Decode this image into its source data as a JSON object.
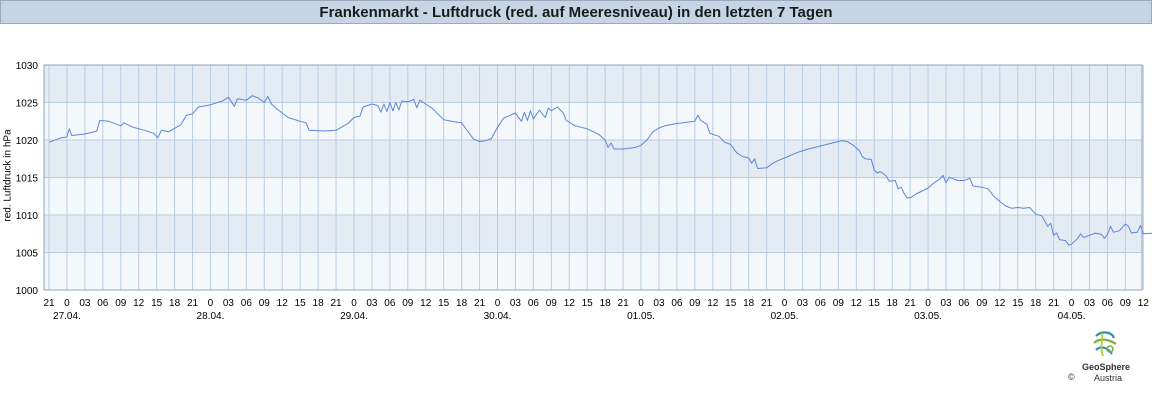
{
  "title": "Frankenmarkt - Luftdruck (red. auf Meeresniveau) in den letzten 7 Tagen",
  "logo": {
    "name": "GeoSphere",
    "sub": "Austria",
    "copyright": "©"
  },
  "colors": {
    "title_bg": "#c5d5e6",
    "band_dark": "#e4ebf3",
    "band_light": "#f5f8fb",
    "grid": "#b9cde3",
    "line": "#5b86d6"
  },
  "chart_data": {
    "type": "line",
    "title": "Frankenmarkt - Luftdruck (red. auf Meeresniveau) in den letzten 7 Tagen",
    "ylabel": "red. Luftdruck in hPa",
    "xlabel": "",
    "ylim": [
      1000,
      1030
    ],
    "yticks": [
      "1030",
      "1025",
      "1020",
      "1015",
      "1010",
      "1005",
      "1000"
    ],
    "grid": true,
    "x_unit": "hours from 26.04. 21:00",
    "xlim": [
      0,
      183
    ],
    "hour_labels": [
      "21",
      "0",
      "03",
      "06",
      "09",
      "12",
      "15",
      "18",
      "21",
      "0",
      "03",
      "06",
      "09",
      "12",
      "15",
      "18",
      "21",
      "0",
      "03",
      "06",
      "09",
      "12",
      "15",
      "18",
      "21",
      "0",
      "03",
      "06",
      "09",
      "12",
      "15",
      "18",
      "21",
      "0",
      "03",
      "06",
      "09",
      "12",
      "15",
      "18",
      "21",
      "0",
      "03",
      "06",
      "09",
      "12",
      "15",
      "18",
      "21",
      "0",
      "03",
      "06",
      "09",
      "12",
      "15",
      "18",
      "21",
      "0",
      "03",
      "06",
      "09",
      "12",
      "15",
      "18",
      "21",
      "0",
      "03",
      "06",
      "09",
      "12"
    ],
    "date_labels": [
      {
        "label": "27.04.",
        "hour": 3
      },
      {
        "label": "28.04.",
        "hour": 27
      },
      {
        "label": "29.04.",
        "hour": 51
      },
      {
        "label": "30.04.",
        "hour": 75
      },
      {
        "label": "01.05.",
        "hour": 99
      },
      {
        "label": "02.05.",
        "hour": 123
      },
      {
        "label": "03.05.",
        "hour": 147
      },
      {
        "label": "04.05.",
        "hour": 171
      }
    ],
    "series": [
      {
        "values": [
          [
            0,
            1019.7
          ],
          [
            2,
            1020.3
          ],
          [
            3,
            1020.4
          ],
          [
            3.4,
            1021.5
          ],
          [
            3.8,
            1020.6
          ],
          [
            6,
            1020.8
          ],
          [
            8,
            1021.2
          ],
          [
            8.5,
            1022.6
          ],
          [
            10,
            1022.5
          ],
          [
            12,
            1021.9
          ],
          [
            12.5,
            1022.3
          ],
          [
            14,
            1021.7
          ],
          [
            16,
            1021.3
          ],
          [
            17.5,
            1020.9
          ],
          [
            18.2,
            1020.3
          ],
          [
            18.8,
            1021.3
          ],
          [
            20,
            1021.1
          ],
          [
            22,
            1022.0
          ],
          [
            23,
            1023.3
          ],
          [
            24,
            1023.5
          ],
          [
            25,
            1024.4
          ],
          [
            27,
            1024.7
          ],
          [
            29,
            1025.2
          ],
          [
            30,
            1025.7
          ],
          [
            31,
            1024.5
          ],
          [
            31.5,
            1025.5
          ],
          [
            33,
            1025.3
          ],
          [
            34,
            1025.9
          ],
          [
            35,
            1025.6
          ],
          [
            36,
            1025.0
          ],
          [
            36.6,
            1025.8
          ],
          [
            37.2,
            1024.8
          ],
          [
            38,
            1024.2
          ],
          [
            40,
            1023.0
          ],
          [
            42,
            1022.5
          ],
          [
            43,
            1022.3
          ],
          [
            43.5,
            1021.3
          ],
          [
            46,
            1021.2
          ],
          [
            48,
            1021.3
          ],
          [
            50,
            1022.2
          ],
          [
            51,
            1023.0
          ],
          [
            52,
            1023.2
          ],
          [
            52.5,
            1024.4
          ],
          [
            54,
            1024.8
          ],
          [
            55,
            1024.6
          ],
          [
            55.5,
            1023.7
          ],
          [
            56,
            1024.8
          ],
          [
            56.5,
            1023.8
          ],
          [
            57,
            1025.0
          ],
          [
            57.5,
            1023.9
          ],
          [
            58,
            1025.0
          ],
          [
            58.5,
            1024.0
          ],
          [
            59,
            1025.2
          ],
          [
            60,
            1025.1
          ],
          [
            61,
            1025.4
          ],
          [
            61.5,
            1024.3
          ],
          [
            62,
            1025.3
          ],
          [
            63,
            1024.8
          ],
          [
            64,
            1024.3
          ],
          [
            65,
            1023.5
          ],
          [
            66,
            1022.7
          ],
          [
            68,
            1022.4
          ],
          [
            69,
            1022.3
          ],
          [
            70,
            1021.2
          ],
          [
            71,
            1020.1
          ],
          [
            72,
            1019.8
          ],
          [
            73,
            1019.9
          ],
          [
            74,
            1020.2
          ],
          [
            75,
            1021.7
          ],
          [
            76,
            1022.9
          ],
          [
            78,
            1023.6
          ],
          [
            79,
            1022.5
          ],
          [
            79.5,
            1023.7
          ],
          [
            80,
            1022.6
          ],
          [
            80.5,
            1023.9
          ],
          [
            81,
            1022.8
          ],
          [
            82,
            1024.0
          ],
          [
            83,
            1023.0
          ],
          [
            83.5,
            1024.3
          ],
          [
            84,
            1023.9
          ],
          [
            85,
            1024.4
          ],
          [
            86,
            1023.6
          ],
          [
            86.5,
            1022.6
          ],
          [
            88,
            1021.9
          ],
          [
            90,
            1021.5
          ],
          [
            91,
            1021.1
          ],
          [
            92,
            1020.7
          ],
          [
            93,
            1020.0
          ],
          [
            93.5,
            1019.0
          ],
          [
            94,
            1019.6
          ],
          [
            94.5,
            1018.8
          ],
          [
            96,
            1018.8
          ],
          [
            98,
            1019.0
          ],
          [
            99,
            1019.3
          ],
          [
            100,
            1020.0
          ],
          [
            101,
            1021.1
          ],
          [
            102,
            1021.6
          ],
          [
            103,
            1021.9
          ],
          [
            105,
            1022.2
          ],
          [
            107,
            1022.4
          ],
          [
            108,
            1022.5
          ],
          [
            108.5,
            1023.3
          ],
          [
            109,
            1022.6
          ],
          [
            110,
            1022.1
          ],
          [
            110.5,
            1020.9
          ],
          [
            112,
            1020.5
          ],
          [
            113,
            1019.7
          ],
          [
            114,
            1019.4
          ],
          [
            115,
            1018.3
          ],
          [
            116,
            1017.8
          ],
          [
            117,
            1017.6
          ],
          [
            117.5,
            1016.9
          ],
          [
            118,
            1017.5
          ],
          [
            118.5,
            1016.2
          ],
          [
            120,
            1016.3
          ],
          [
            121,
            1016.9
          ],
          [
            122,
            1017.3
          ],
          [
            123,
            1017.6
          ],
          [
            125,
            1018.3
          ],
          [
            127,
            1018.8
          ],
          [
            129,
            1019.2
          ],
          [
            131,
            1019.6
          ],
          [
            132.5,
            1019.9
          ],
          [
            133.5,
            1019.8
          ],
          [
            134.5,
            1019.3
          ],
          [
            135.5,
            1018.6
          ],
          [
            136,
            1017.8
          ],
          [
            136.5,
            1017.5
          ],
          [
            137.5,
            1017.4
          ],
          [
            138,
            1016.0
          ],
          [
            138.5,
            1015.6
          ],
          [
            139,
            1015.8
          ],
          [
            140,
            1015.2
          ],
          [
            140.5,
            1014.5
          ],
          [
            141.5,
            1014.6
          ],
          [
            142,
            1013.5
          ],
          [
            142.5,
            1013.7
          ],
          [
            143,
            1012.9
          ],
          [
            143.5,
            1012.3
          ],
          [
            144,
            1012.3
          ],
          [
            145,
            1012.8
          ],
          [
            146,
            1013.2
          ],
          [
            147,
            1013.6
          ],
          [
            148,
            1014.3
          ],
          [
            149,
            1014.8
          ],
          [
            149.5,
            1015.3
          ],
          [
            150,
            1014.3
          ],
          [
            150.5,
            1015.0
          ],
          [
            151,
            1014.9
          ],
          [
            152,
            1014.6
          ],
          [
            153,
            1014.6
          ],
          [
            154,
            1014.9
          ],
          [
            154.5,
            1013.9
          ],
          [
            155,
            1013.8
          ],
          [
            156,
            1013.7
          ],
          [
            157,
            1013.5
          ],
          [
            157.5,
            1013.0
          ],
          [
            158,
            1012.5
          ],
          [
            159,
            1011.8
          ],
          [
            160,
            1011.2
          ],
          [
            161,
            1010.9
          ],
          [
            162,
            1011.0
          ],
          [
            163,
            1010.9
          ],
          [
            164,
            1011.0
          ],
          [
            165,
            1010.1
          ],
          [
            166,
            1009.9
          ],
          [
            167,
            1008.5
          ],
          [
            167.5,
            1008.9
          ],
          [
            168,
            1007.3
          ],
          [
            168.5,
            1007.6
          ],
          [
            169,
            1006.7
          ],
          [
            170,
            1006.6
          ],
          [
            170.5,
            1006.0
          ],
          [
            171,
            1006.1
          ],
          [
            172,
            1006.9
          ],
          [
            172.5,
            1007.5
          ],
          [
            173,
            1007.0
          ],
          [
            174,
            1007.3
          ],
          [
            175,
            1007.6
          ],
          [
            176,
            1007.4
          ],
          [
            176.5,
            1006.9
          ],
          [
            177,
            1007.4
          ],
          [
            177.5,
            1008.5
          ],
          [
            178,
            1007.7
          ],
          [
            179,
            1007.9
          ],
          [
            180,
            1008.8
          ],
          [
            180.5,
            1008.5
          ],
          [
            181,
            1007.6
          ],
          [
            182,
            1007.7
          ],
          [
            182.5,
            1008.6
          ],
          [
            183,
            1007.5
          ],
          [
            185,
            1007.6
          ]
        ]
      }
    ]
  }
}
